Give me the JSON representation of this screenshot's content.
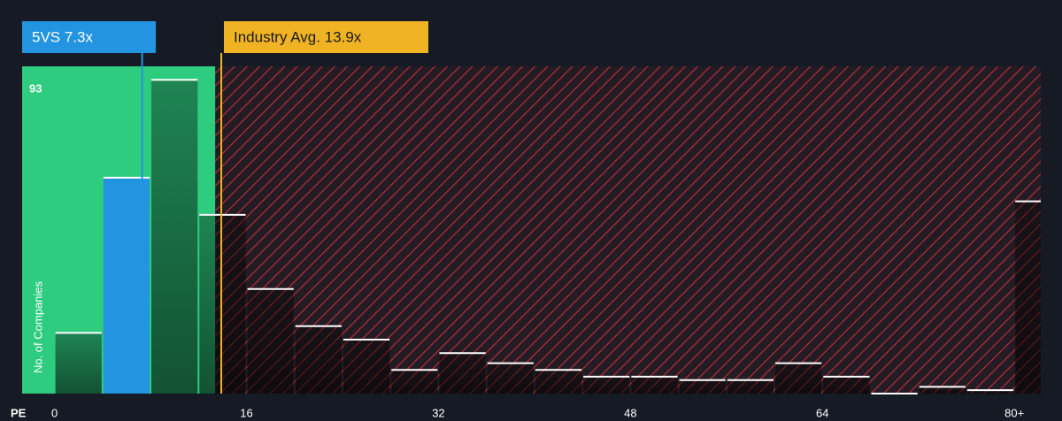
{
  "chart_data": {
    "type": "histogram",
    "x_label": "PE",
    "y_label": "No. of Companies",
    "bins": [
      0,
      4,
      8,
      12,
      16,
      20,
      24,
      28,
      32,
      36,
      40,
      44,
      48,
      52,
      56,
      60,
      64,
      68,
      72,
      76,
      80,
      84
    ],
    "counts": [
      18,
      64,
      93,
      53,
      31,
      20,
      16,
      7,
      12,
      9,
      7,
      5,
      5,
      4,
      4,
      9,
      5,
      0,
      2,
      1,
      57
    ],
    "bar_color": "#1a2a26",
    "highlight_color": "#2394e0",
    "xlim": [
      -2.7,
      82.2
    ],
    "ylim": [
      0,
      97
    ],
    "xticks": [
      0,
      16,
      32,
      48,
      64,
      {
        "value": 80,
        "label": "80+"
      }
    ],
    "yticks": [
      93
    ],
    "regions": [
      {
        "xlim": [
          -2.7,
          13.4
        ],
        "color": "#2ecc7f",
        "style": "solid"
      },
      {
        "xlim": [
          13.4,
          82.2
        ],
        "color": "#c0303c",
        "style": "hatch"
      }
    ],
    "annotations": [
      {
        "text": "5VS 7.3x",
        "x": 7.3,
        "color": "#2394e0",
        "text_color": "#ffffff"
      },
      {
        "text": "Industry Avg. 13.9x",
        "x": 13.9,
        "color": "#f0b323",
        "text_color": "#1a1a1a"
      }
    ]
  }
}
